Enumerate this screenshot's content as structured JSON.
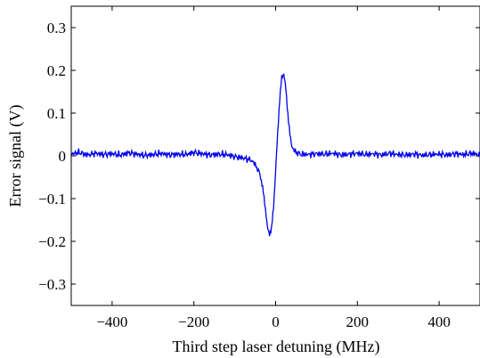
{
  "chart_data": {
    "type": "line",
    "title": "",
    "xlabel": "Third step laser detuning (MHz)",
    "ylabel": "Error signal (V)",
    "xlim": [
      -500,
      500
    ],
    "ylim": [
      -0.35,
      0.35
    ],
    "xticks": [
      -400,
      -200,
      0,
      200,
      400
    ],
    "xtick_labels": [
      "−400",
      "−200",
      "0",
      "200",
      "400"
    ],
    "yticks": [
      -0.3,
      -0.2,
      -0.1,
      0,
      0.1,
      0.2,
      0.3
    ],
    "ytick_labels": [
      "−0.3",
      "−0.2",
      "−0.1",
      "0",
      "0.1",
      "0.2",
      "0.3"
    ],
    "grid": false,
    "line_color": "#0000ee",
    "series": [
      {
        "x": [
          -500,
          -480,
          -460,
          -440,
          -420,
          -400,
          -380,
          -360,
          -340,
          -320,
          -300,
          -280,
          -260,
          -240,
          -220,
          -200,
          -180,
          -160,
          -140,
          -120,
          -100,
          -80,
          -60,
          -50,
          -40,
          -35,
          -30,
          -25,
          -20,
          -15,
          -10,
          -5,
          0,
          5,
          10,
          15,
          20,
          25,
          30,
          35,
          40,
          50,
          60,
          80,
          100,
          120,
          140,
          160,
          180,
          200,
          220,
          240,
          260,
          280,
          300,
          320,
          340,
          360,
          380,
          400,
          420,
          440,
          460,
          480,
          500
        ],
        "y": [
          0.004,
          0.008,
          0.002,
          0.006,
          0.003,
          0.005,
          0.002,
          0.007,
          0.004,
          0.001,
          0.003,
          0.006,
          0.002,
          0.004,
          0.003,
          0.008,
          0.005,
          0.002,
          0.004,
          0.003,
          -0.002,
          -0.005,
          -0.01,
          -0.02,
          -0.04,
          -0.06,
          -0.085,
          -0.12,
          -0.165,
          -0.18,
          -0.17,
          -0.12,
          -0.04,
          0.05,
          0.13,
          0.185,
          0.195,
          0.16,
          0.1,
          0.05,
          0.02,
          0.008,
          0.004,
          0.003,
          0.005,
          0.004,
          0.006,
          0.002,
          0.004,
          0.006,
          0.003,
          0.005,
          0.002,
          0.006,
          0.003,
          0.002,
          0.004,
          0.001,
          0.003,
          0.004,
          0.002,
          0.005,
          0.003,
          0.006,
          0.002
        ]
      }
    ]
  }
}
